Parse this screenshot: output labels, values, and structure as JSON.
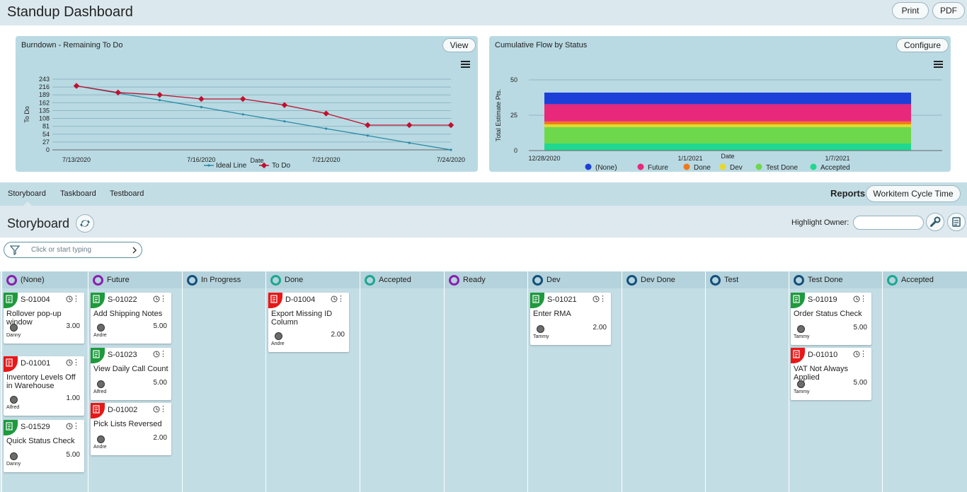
{
  "app": {
    "title": "Standup Dashboard",
    "print_label": "Print",
    "pdf_label": "PDF"
  },
  "burndown": {
    "title": "Burndown - Remaining To Do",
    "view_label": "View",
    "chart_data": {
      "type": "line",
      "title": "Burndown - Remaining To Do",
      "xlabel": "Date",
      "ylabel": "To Do",
      "x": [
        "7/13/2020",
        "7/14/2020",
        "7/15/2020",
        "7/16/2020",
        "7/17/2020",
        "7/20/2020",
        "7/21/2020",
        "7/22/2020",
        "7/23/2020",
        "7/24/2020"
      ],
      "x_tick_labels": [
        "7/13/2020",
        "7/16/2020",
        "7/21/2020",
        "7/24/2020"
      ],
      "y_ticks": [
        0,
        27,
        54,
        81,
        108,
        135,
        162,
        189,
        216,
        243
      ],
      "ylim": [
        0,
        243
      ],
      "grid": true,
      "legend": "bottom",
      "series": [
        {
          "name": "Ideal Line",
          "color": "#2a8aa5",
          "values": [
            220,
            195,
            171,
            147,
            122,
            98,
            73,
            49,
            24,
            0
          ]
        },
        {
          "name": "To Do",
          "color": "#c0102e",
          "values": [
            220,
            197,
            189,
            175,
            175,
            154,
            125,
            85,
            85,
            85
          ]
        }
      ]
    }
  },
  "cumflow": {
    "title": "Cumulative Flow by Status",
    "configure_label": "Configure",
    "chart_data": {
      "type": "area",
      "title": "Cumulative Flow by Status",
      "xlabel": "Date",
      "ylabel": "Total Estimate Pts.",
      "x_tick_labels": [
        "12/28/2020",
        "1/1/2021",
        "1/7/2021"
      ],
      "y_ticks": [
        0,
        25,
        50
      ],
      "ylim": [
        0,
        50
      ],
      "grid": true,
      "legend": "bottom",
      "stacked": true,
      "series": [
        {
          "name": "(None)",
          "color": "#1c3fd8",
          "value": 8.2
        },
        {
          "name": "Future",
          "color": "#e8287a",
          "value": 12.2
        },
        {
          "name": "Done",
          "color": "#f07818",
          "value": 2.0
        },
        {
          "name": "Dev",
          "color": "#e8d82a",
          "value": 2.0
        },
        {
          "name": "Test Done",
          "color": "#6ed84c",
          "value": 11.6
        },
        {
          "name": "Accepted",
          "color": "#20d890",
          "value": 5.0
        }
      ]
    }
  },
  "tabs": {
    "items": [
      "Storyboard",
      "Taskboard",
      "Testboard"
    ],
    "reports_label": "Reports:",
    "cycle_time_label": "Workitem Cycle Time"
  },
  "storyboard": {
    "title": "Storyboard",
    "highlight_owner_label": "Highlight Owner:",
    "filter_placeholder": "Click or start typing"
  },
  "board": {
    "columns": [
      {
        "name": "(None)",
        "ring": "#8a1fb0"
      },
      {
        "name": "Future",
        "ring": "#8a1fb0"
      },
      {
        "name": "In Progress",
        "ring": "#13507a"
      },
      {
        "name": "Done",
        "ring": "#1aa890"
      },
      {
        "name": "Accepted",
        "ring": "#1aa890"
      },
      {
        "name": "Ready",
        "ring": "#8a1fb0"
      },
      {
        "name": "Dev",
        "ring": "#13507a"
      },
      {
        "name": "Dev Done",
        "ring": "#13507a"
      },
      {
        "name": "Test",
        "ring": "#13507a"
      },
      {
        "name": "Test Done",
        "ring": "#13507a"
      },
      {
        "name": "Accepted",
        "ring": "#1aa890"
      }
    ],
    "cards": [
      {
        "id": "S-01004",
        "type": "story",
        "title": "Rollover pop-up window",
        "owner": "Danny",
        "estimate": "3.00"
      },
      {
        "id": "D-01001",
        "type": "defect",
        "title": "Inventory Levels Off in Warehouse",
        "owner": "Alfred",
        "estimate": "1.00"
      },
      {
        "id": "S-01529",
        "type": "story",
        "title": "Quick Status Check",
        "owner": "Danny",
        "estimate": "5.00"
      },
      {
        "id": "S-01022",
        "type": "story",
        "title": "Add Shipping Notes",
        "owner": "Andre",
        "estimate": "5.00"
      },
      {
        "id": "S-01023",
        "type": "story",
        "title": "View Daily Call Count",
        "owner": "Alfred",
        "estimate": "5.00"
      },
      {
        "id": "D-01002",
        "type": "defect",
        "title": "Pick Lists Reversed",
        "owner": "Andre",
        "estimate": "2.00"
      },
      {
        "id": "D-01004",
        "type": "defect",
        "title": "Export Missing ID Column",
        "owner": "Andre",
        "estimate": "2.00"
      },
      {
        "id": "S-01021",
        "type": "story",
        "title": "Enter RMA",
        "owner": "Tammy",
        "estimate": "2.00"
      },
      {
        "id": "S-01019",
        "type": "story",
        "title": "Order Status Check",
        "owner": "Tammy",
        "estimate": "5.00"
      },
      {
        "id": "D-01010",
        "type": "defect",
        "title": "VAT Not Always Applied",
        "owner": "Tammy",
        "estimate": "5.00"
      }
    ],
    "colors": {
      "story": "#1e9a3c",
      "defect": "#e81818"
    }
  }
}
